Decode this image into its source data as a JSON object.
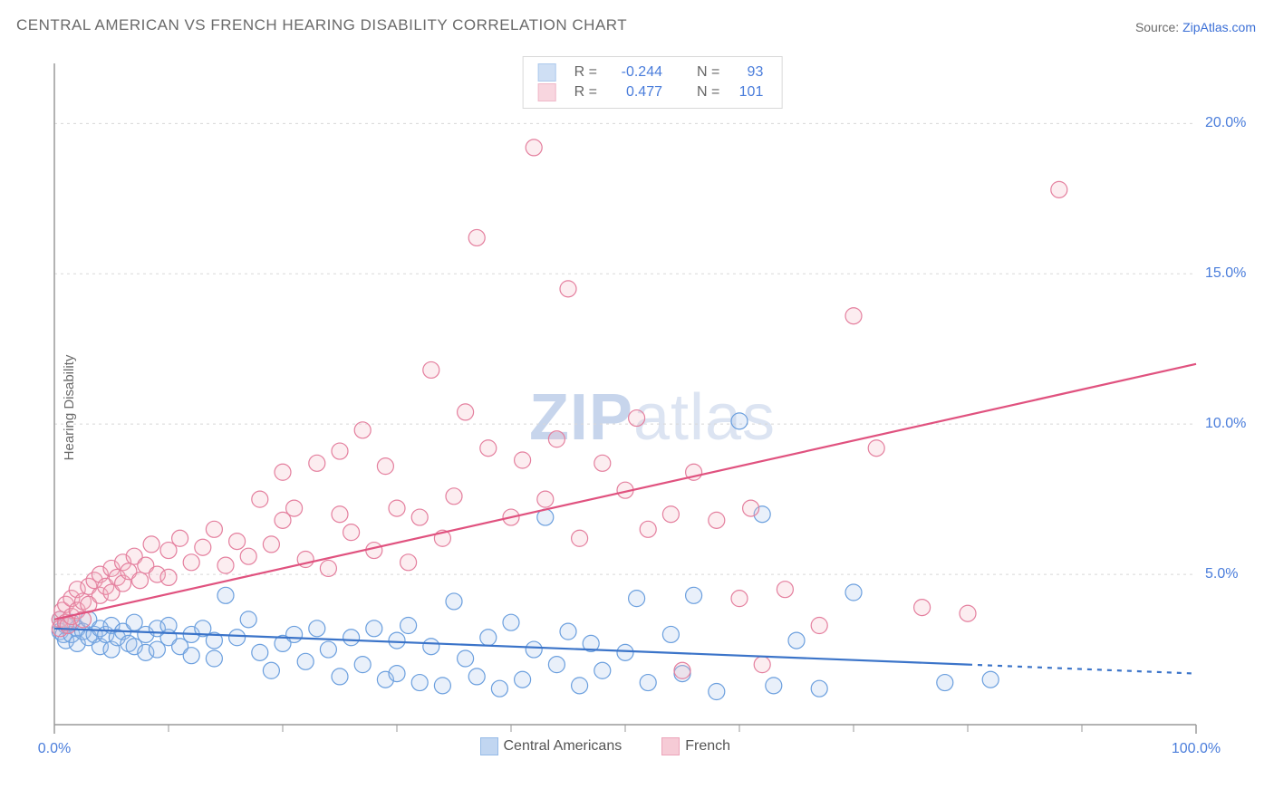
{
  "title": "CENTRAL AMERICAN VS FRENCH HEARING DISABILITY CORRELATION CHART",
  "source_prefix": "Source: ",
  "source_link_text": "ZipAtlas.com",
  "watermark_bold": "ZIP",
  "watermark_light": "atlas",
  "chart": {
    "type": "scatter",
    "ylabel": "Hearing Disability",
    "background_color": "#ffffff",
    "grid_color": "#d8d8d8",
    "axis_color": "#9a9a9a",
    "label_fontsize": 15,
    "tick_fontsize": 16,
    "tick_color": "#4a7ddb",
    "xlim": [
      0,
      100
    ],
    "ylim": [
      0,
      22
    ],
    "xtick_labels": [
      {
        "v": 0,
        "label": "0.0%"
      },
      {
        "v": 100,
        "label": "100.0%"
      }
    ],
    "xtick_minor": [
      10,
      20,
      30,
      40,
      50,
      60,
      70,
      80,
      90
    ],
    "ytick_labels": [
      {
        "v": 5,
        "label": "5.0%"
      },
      {
        "v": 10,
        "label": "10.0%"
      },
      {
        "v": 15,
        "label": "15.0%"
      },
      {
        "v": 20,
        "label": "20.0%"
      }
    ],
    "marker_radius": 9,
    "marker_stroke_width": 1.2,
    "marker_fill_opacity": 0.25,
    "line_width": 2.2,
    "series": [
      {
        "key": "central_americans",
        "label": "Central Americans",
        "fill": "#a8c5ec",
        "stroke": "#6b9fde",
        "line_color": "#3b74c9",
        "R_label": "R =",
        "R": "-0.244",
        "N_label": "N =",
        "N": "93",
        "trend": {
          "x1": 0,
          "y1": 3.2,
          "x2": 80,
          "y2": 2.0,
          "dash_from_x": 80,
          "dash_to_x": 100,
          "dash_y2": 1.7
        },
        "points": [
          [
            0.5,
            3.5
          ],
          [
            0.5,
            3.1
          ],
          [
            0.8,
            3.0
          ],
          [
            1,
            3.3
          ],
          [
            1,
            2.8
          ],
          [
            1.5,
            3.4
          ],
          [
            1.5,
            3.0
          ],
          [
            2,
            3.2
          ],
          [
            2,
            2.7
          ],
          [
            2.5,
            3.1
          ],
          [
            3,
            3.5
          ],
          [
            3,
            2.9
          ],
          [
            3.5,
            3.0
          ],
          [
            4,
            2.6
          ],
          [
            4,
            3.2
          ],
          [
            4.5,
            3.0
          ],
          [
            5,
            3.3
          ],
          [
            5,
            2.5
          ],
          [
            5.5,
            2.9
          ],
          [
            6,
            3.1
          ],
          [
            6.5,
            2.7
          ],
          [
            7,
            3.4
          ],
          [
            7,
            2.6
          ],
          [
            8,
            3.0
          ],
          [
            8,
            2.4
          ],
          [
            9,
            3.2
          ],
          [
            9,
            2.5
          ],
          [
            10,
            2.9
          ],
          [
            10,
            3.3
          ],
          [
            11,
            2.6
          ],
          [
            12,
            3.0
          ],
          [
            12,
            2.3
          ],
          [
            13,
            3.2
          ],
          [
            14,
            2.8
          ],
          [
            14,
            2.2
          ],
          [
            15,
            4.3
          ],
          [
            16,
            2.9
          ],
          [
            17,
            3.5
          ],
          [
            18,
            2.4
          ],
          [
            19,
            1.8
          ],
          [
            20,
            2.7
          ],
          [
            21,
            3.0
          ],
          [
            22,
            2.1
          ],
          [
            23,
            3.2
          ],
          [
            24,
            2.5
          ],
          [
            25,
            1.6
          ],
          [
            26,
            2.9
          ],
          [
            27,
            2.0
          ],
          [
            28,
            3.2
          ],
          [
            29,
            1.5
          ],
          [
            30,
            2.8
          ],
          [
            30,
            1.7
          ],
          [
            31,
            3.3
          ],
          [
            32,
            1.4
          ],
          [
            33,
            2.6
          ],
          [
            34,
            1.3
          ],
          [
            35,
            4.1
          ],
          [
            36,
            2.2
          ],
          [
            37,
            1.6
          ],
          [
            38,
            2.9
          ],
          [
            39,
            1.2
          ],
          [
            40,
            3.4
          ],
          [
            41,
            1.5
          ],
          [
            42,
            2.5
          ],
          [
            43,
            6.9
          ],
          [
            44,
            2.0
          ],
          [
            45,
            3.1
          ],
          [
            46,
            1.3
          ],
          [
            47,
            2.7
          ],
          [
            48,
            1.8
          ],
          [
            50,
            2.4
          ],
          [
            51,
            4.2
          ],
          [
            52,
            1.4
          ],
          [
            54,
            3.0
          ],
          [
            55,
            1.7
          ],
          [
            56,
            4.3
          ],
          [
            58,
            1.1
          ],
          [
            60,
            10.1
          ],
          [
            62,
            7.0
          ],
          [
            63,
            1.3
          ],
          [
            65,
            2.8
          ],
          [
            67,
            1.2
          ],
          [
            70,
            4.4
          ],
          [
            78,
            1.4
          ],
          [
            82,
            1.5
          ]
        ]
      },
      {
        "key": "french",
        "label": "French",
        "fill": "#f3b6c5",
        "stroke": "#e47f9e",
        "line_color": "#e0527f",
        "R_label": "R =",
        "R": "0.477",
        "N_label": "N =",
        "N": "101",
        "trend": {
          "x1": 0,
          "y1": 3.5,
          "x2": 100,
          "y2": 12.0,
          "dash_from_x": 100,
          "dash_to_x": 100,
          "dash_y2": 12.0
        },
        "points": [
          [
            0.5,
            3.5
          ],
          [
            0.5,
            3.2
          ],
          [
            0.7,
            3.8
          ],
          [
            1,
            3.4
          ],
          [
            1,
            4.0
          ],
          [
            1.2,
            3.3
          ],
          [
            1.5,
            4.2
          ],
          [
            1.5,
            3.6
          ],
          [
            2,
            4.5
          ],
          [
            2,
            3.8
          ],
          [
            2.5,
            4.1
          ],
          [
            2.5,
            3.5
          ],
          [
            3,
            4.6
          ],
          [
            3,
            4.0
          ],
          [
            3.5,
            4.8
          ],
          [
            4,
            4.3
          ],
          [
            4,
            5.0
          ],
          [
            4.5,
            4.6
          ],
          [
            5,
            5.2
          ],
          [
            5,
            4.4
          ],
          [
            5.5,
            4.9
          ],
          [
            6,
            5.4
          ],
          [
            6,
            4.7
          ],
          [
            6.5,
            5.1
          ],
          [
            7,
            5.6
          ],
          [
            7.5,
            4.8
          ],
          [
            8,
            5.3
          ],
          [
            8.5,
            6.0
          ],
          [
            9,
            5.0
          ],
          [
            10,
            5.8
          ],
          [
            10,
            4.9
          ],
          [
            11,
            6.2
          ],
          [
            12,
            5.4
          ],
          [
            13,
            5.9
          ],
          [
            14,
            6.5
          ],
          [
            15,
            5.3
          ],
          [
            16,
            6.1
          ],
          [
            17,
            5.6
          ],
          [
            18,
            7.5
          ],
          [
            19,
            6.0
          ],
          [
            20,
            6.8
          ],
          [
            20,
            8.4
          ],
          [
            21,
            7.2
          ],
          [
            22,
            5.5
          ],
          [
            23,
            8.7
          ],
          [
            24,
            5.2
          ],
          [
            25,
            9.1
          ],
          [
            25,
            7.0
          ],
          [
            26,
            6.4
          ],
          [
            27,
            9.8
          ],
          [
            28,
            5.8
          ],
          [
            29,
            8.6
          ],
          [
            30,
            7.2
          ],
          [
            31,
            5.4
          ],
          [
            32,
            6.9
          ],
          [
            33,
            11.8
          ],
          [
            34,
            6.2
          ],
          [
            35,
            7.6
          ],
          [
            36,
            10.4
          ],
          [
            37,
            16.2
          ],
          [
            38,
            9.2
          ],
          [
            40,
            6.9
          ],
          [
            41,
            8.8
          ],
          [
            42,
            19.2
          ],
          [
            43,
            7.5
          ],
          [
            44,
            9.5
          ],
          [
            45,
            14.5
          ],
          [
            46,
            6.2
          ],
          [
            48,
            8.7
          ],
          [
            50,
            7.8
          ],
          [
            51,
            10.2
          ],
          [
            52,
            6.5
          ],
          [
            54,
            7.0
          ],
          [
            55,
            1.8
          ],
          [
            56,
            8.4
          ],
          [
            58,
            6.8
          ],
          [
            60,
            4.2
          ],
          [
            61,
            7.2
          ],
          [
            62,
            2.0
          ],
          [
            64,
            4.5
          ],
          [
            67,
            3.3
          ],
          [
            70,
            13.6
          ],
          [
            72,
            9.2
          ],
          [
            76,
            3.9
          ],
          [
            80,
            3.7
          ],
          [
            88,
            17.8
          ]
        ]
      }
    ]
  }
}
